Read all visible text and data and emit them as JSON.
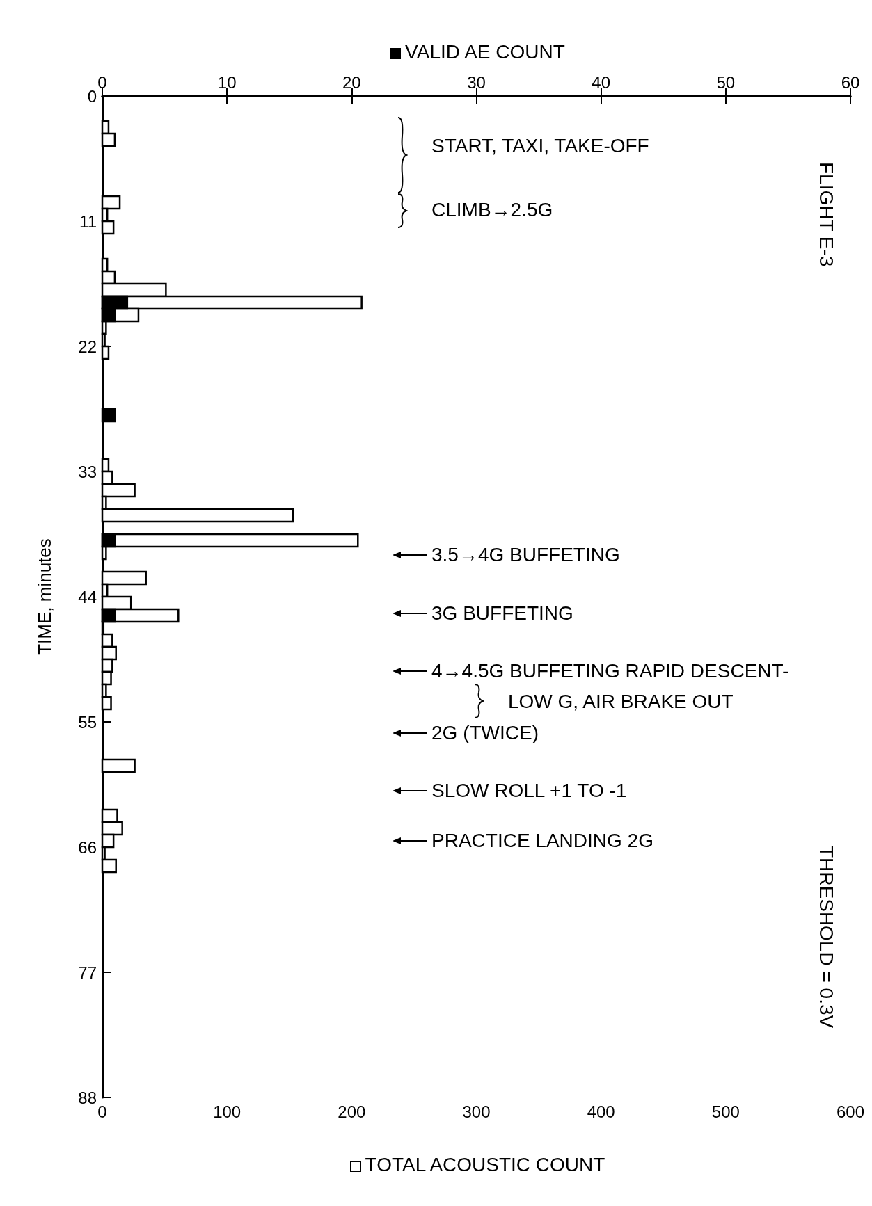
{
  "chart_data": {
    "type": "histogram",
    "orientation": "horizontal",
    "xlabel": "TOTAL ACOUSTIC COUNT",
    "x2label": "VALID AE COUNT",
    "ylabel": "TIME, minutes",
    "bins": [
      0,
      1.1,
      2.2,
      3.3,
      4.4,
      5.5,
      6.6,
      7.7,
      8.8,
      9.9,
      11,
      12.1,
      13.2,
      14.3,
      15.4,
      16.5,
      17.6,
      18.7,
      19.8,
      20.9,
      22,
      23.1,
      24.2,
      25.3,
      26.4,
      27.5,
      28.6,
      29.7,
      30.8,
      31.9,
      33,
      34.1,
      35.2,
      36.3,
      37.4,
      38.5,
      39.6,
      40.7,
      41.8,
      42.9,
      44,
      45.1,
      46.2,
      47.3,
      48.4,
      49.5,
      50.6,
      51.7,
      52.8,
      53.9,
      55,
      56.1,
      57.2,
      58.3,
      59.4,
      60.5,
      61.6,
      62.7,
      63.8,
      64.9,
      66,
      67.1,
      68.2,
      69.3,
      70.4,
      71.5,
      72.6,
      73.7,
      74.8,
      75.9,
      77,
      78.1,
      79.2,
      80.3,
      81.4,
      82.5,
      83.6,
      84.7,
      85.8,
      86.9,
      88
    ],
    "series": [
      {
        "color": "#ffffff",
        "values": [
          0,
          0,
          5,
          10,
          0,
          0,
          0,
          0,
          14,
          4,
          9,
          0,
          0,
          4,
          10,
          51,
          208,
          29,
          3,
          2,
          5,
          0,
          0,
          0,
          0,
          0,
          0,
          0,
          0,
          5,
          8,
          26,
          3,
          153,
          0,
          205,
          3,
          0,
          35,
          4,
          23,
          61,
          1,
          8,
          11,
          8,
          7,
          3,
          7,
          0,
          0,
          0,
          0,
          26,
          0,
          0,
          0,
          12,
          16,
          9,
          2,
          11,
          0,
          0,
          0,
          0,
          0,
          0,
          0,
          0,
          0,
          0,
          0,
          0,
          0,
          0,
          0,
          0,
          0,
          0
        ]
      },
      {
        "color": "#000000",
        "axis": "x2",
        "values": [
          0,
          0,
          0,
          0,
          0,
          0,
          0,
          0,
          0,
          0,
          0,
          0,
          0,
          0,
          0,
          0,
          2,
          1,
          0,
          0,
          0,
          0,
          0,
          0,
          0,
          1,
          0,
          0,
          0,
          0,
          0,
          0,
          0,
          0,
          0,
          1,
          0,
          0,
          0,
          0,
          0,
          1,
          0,
          0,
          0,
          0,
          0,
          0,
          0,
          0,
          0,
          0,
          0,
          0,
          0,
          0,
          0,
          0,
          0,
          0,
          0,
          0,
          0,
          0,
          0,
          0,
          0,
          0,
          0,
          0,
          0,
          0,
          0,
          0,
          0,
          0,
          0,
          0,
          0,
          0
        ]
      }
    ],
    "xlim": [
      0,
      600
    ],
    "xticks": [
      0,
      100,
      200,
      300,
      400,
      500,
      600
    ],
    "x2lim": [
      0,
      60
    ],
    "x2ticks": [
      0,
      10,
      20,
      30,
      40,
      50,
      60
    ],
    "ylim": [
      88,
      0
    ],
    "yticks": [
      0,
      11,
      22,
      33,
      44,
      55,
      66,
      77,
      88
    ],
    "annotations": [
      "START, TAXI, TAKE-OFF",
      "CLIMB→2.5G",
      "3.5→4G BUFFETING",
      "3G BUFFETING",
      "4→4.5G BUFFETING RAPID DESCENT-",
      "LOW G, AIR BRAKE OUT",
      "2G (TWICE)",
      "SLOW ROLL +1 TO -1",
      "PRACTICE LANDING 2G",
      "FLIGHT E-3",
      "THRESHOLD = 0.3V"
    ]
  }
}
